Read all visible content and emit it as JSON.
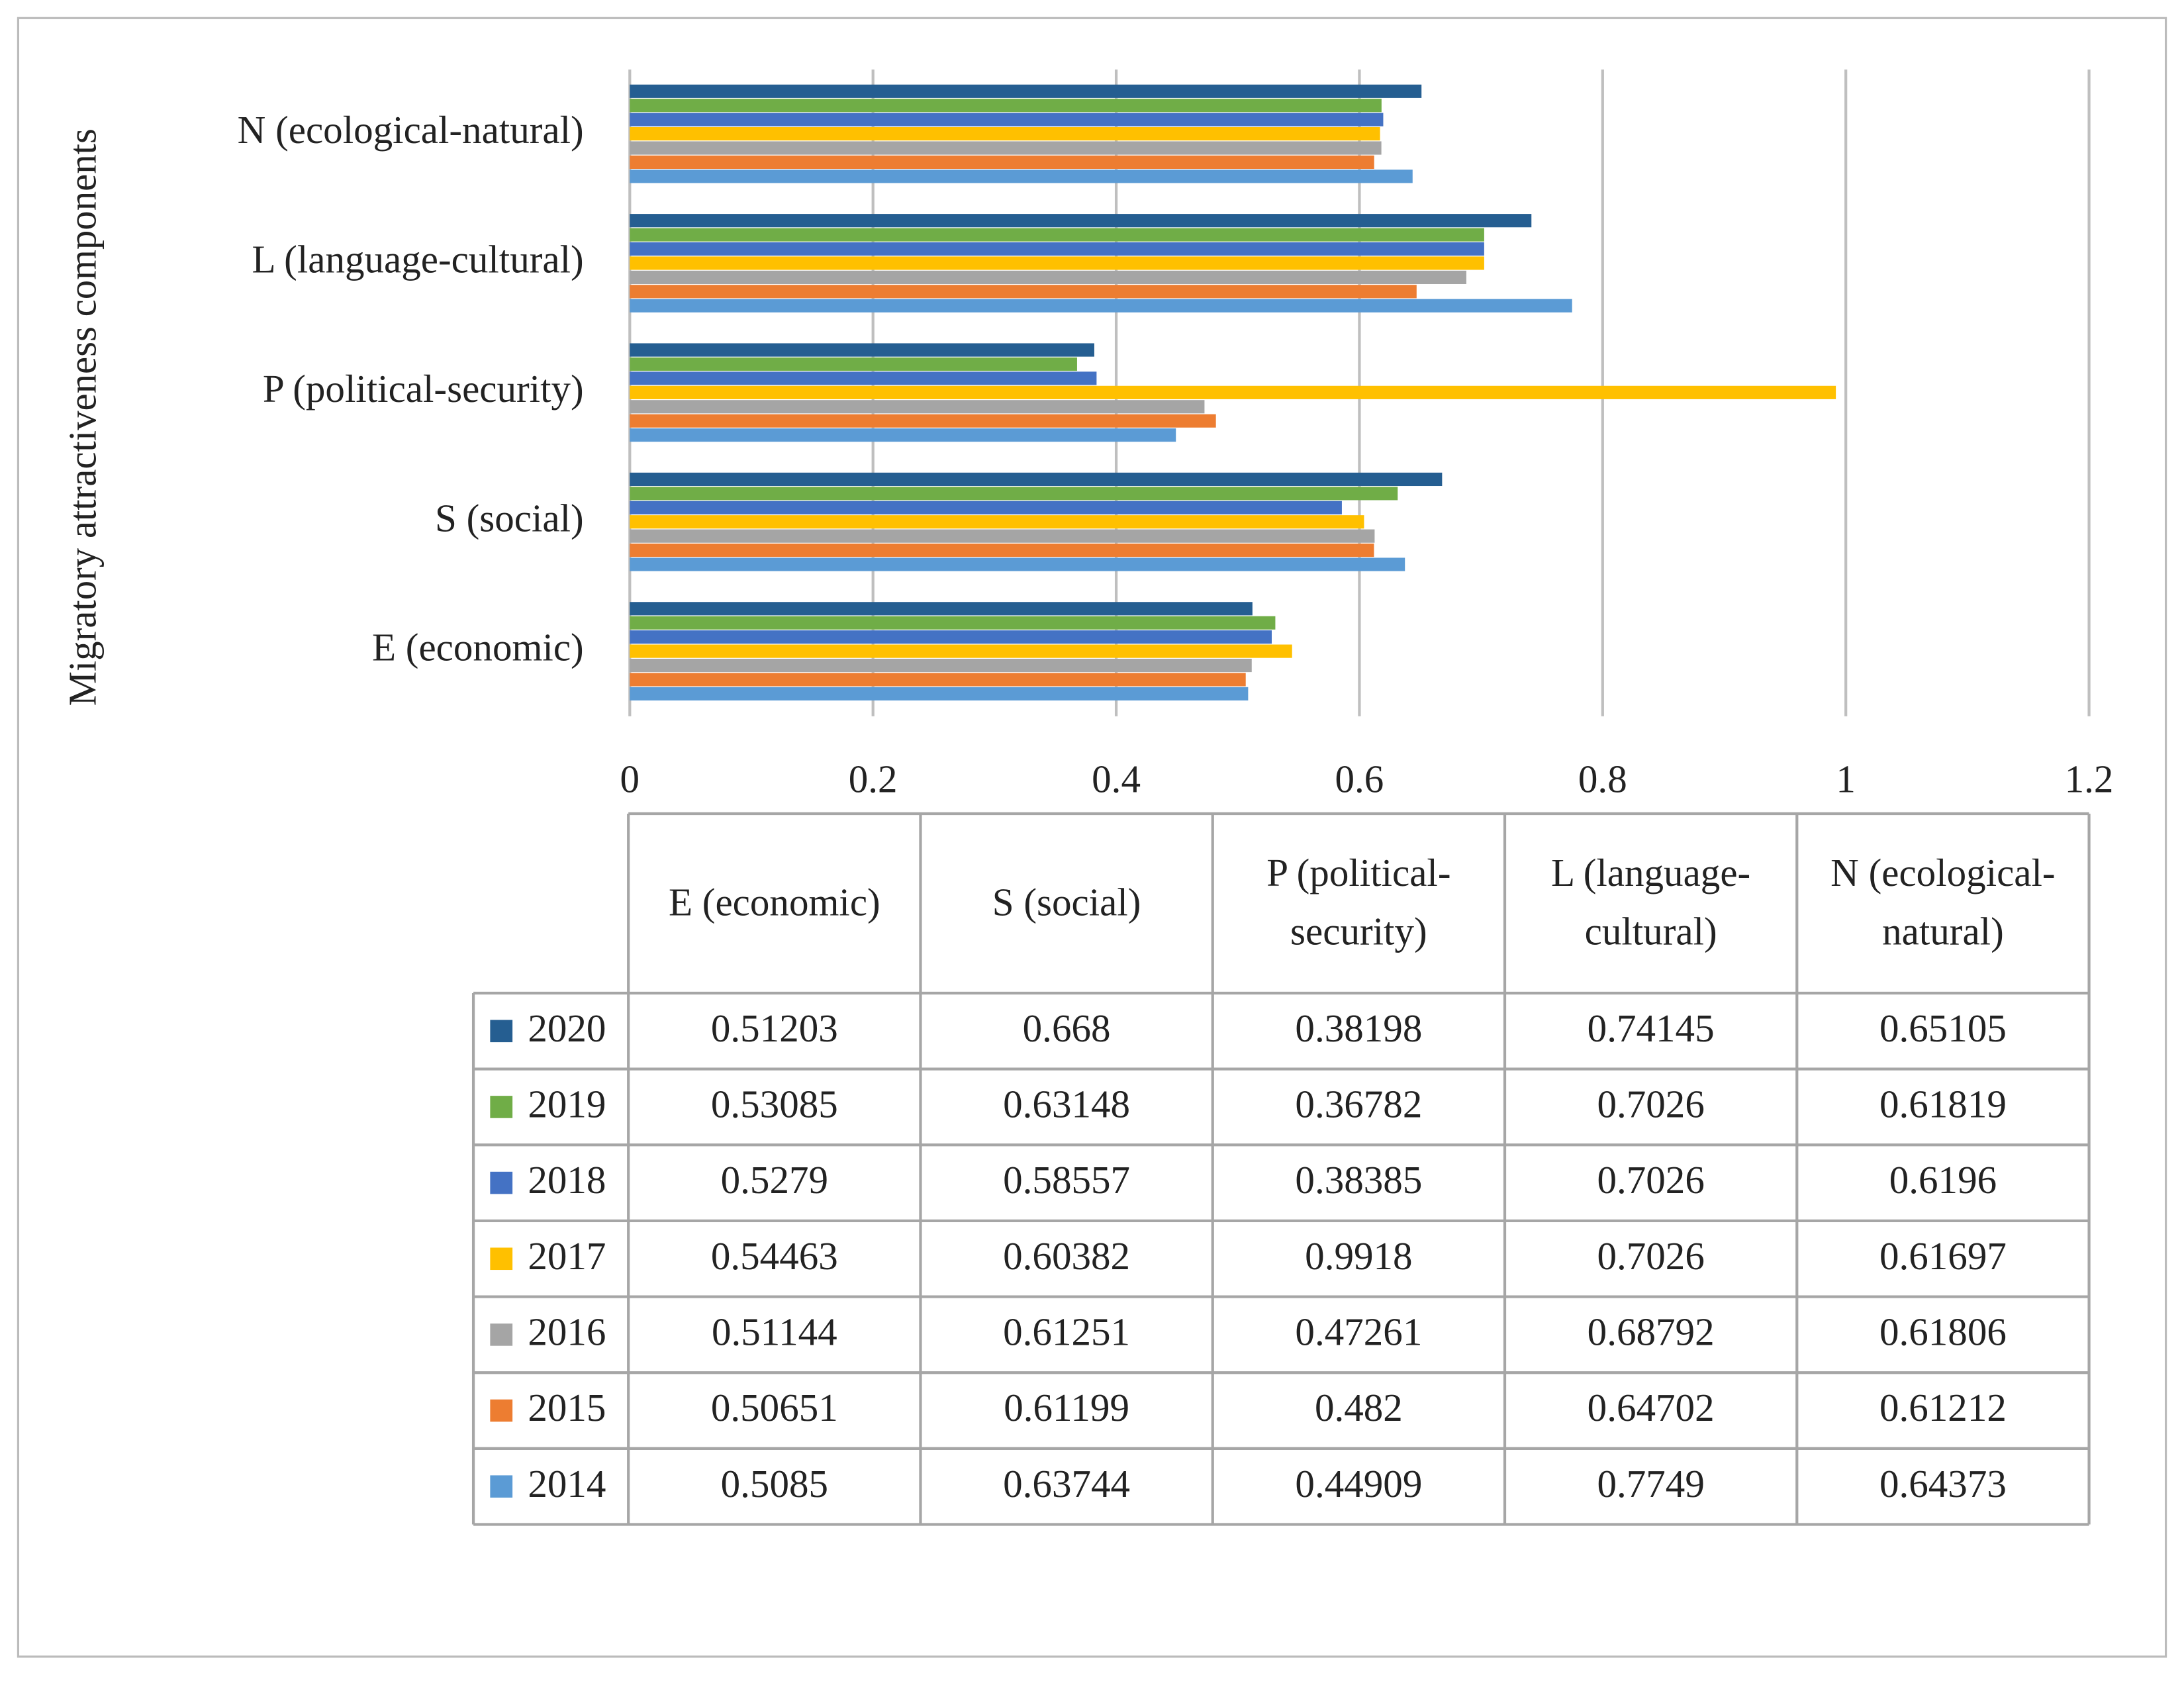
{
  "chart_data": {
    "type": "bar",
    "orientation": "horizontal",
    "y_label": "Migratory attractiveness components",
    "categories": [
      "E (economic)",
      "S (social)",
      "P (political-security)",
      "L (language-cultural)",
      "N (ecological-natural)"
    ],
    "series": [
      {
        "name": "2020",
        "color": "#255e91",
        "values": [
          0.51203,
          0.668,
          0.38198,
          0.74145,
          0.65105
        ]
      },
      {
        "name": "2019",
        "color": "#70ad47",
        "values": [
          0.53085,
          0.63148,
          0.36782,
          0.7026,
          0.61819
        ]
      },
      {
        "name": "2018",
        "color": "#4472c4",
        "values": [
          0.5279,
          0.58557,
          0.38385,
          0.7026,
          0.6196
        ]
      },
      {
        "name": "2017",
        "color": "#ffc000",
        "values": [
          0.54463,
          0.60382,
          0.9918,
          0.7026,
          0.61697
        ]
      },
      {
        "name": "2016",
        "color": "#a5a5a5",
        "values": [
          0.51144,
          0.61251,
          0.47261,
          0.68792,
          0.61806
        ]
      },
      {
        "name": "2015",
        "color": "#ed7d31",
        "values": [
          0.50651,
          0.61199,
          0.482,
          0.64702,
          0.61212
        ]
      },
      {
        "name": "2014",
        "color": "#5b9bd5",
        "values": [
          0.5085,
          0.63744,
          0.44909,
          0.7749,
          0.64373
        ]
      }
    ],
    "xlim": [
      0,
      1.2
    ],
    "xticks": [
      0,
      0.2,
      0.4,
      0.6,
      0.8,
      1,
      1.2
    ],
    "grid": true,
    "data_table": true
  }
}
